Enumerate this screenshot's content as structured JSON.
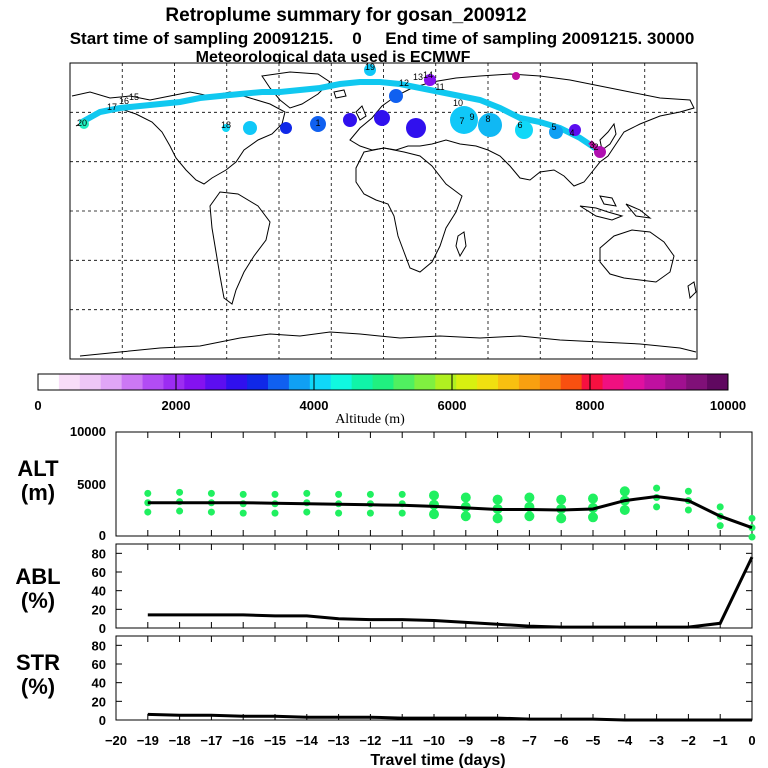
{
  "header": {
    "title": "Retroplume summary for gosan_200912",
    "line2": "Start time of sampling 20091215.    0     End time of sampling 20091215. 30000",
    "line3": "Meteorological data used is ECMWF"
  },
  "colorbar": {
    "label": "Altitude (m)",
    "ticks": [
      "0",
      "2000",
      "4000",
      "6000",
      "8000",
      "10000"
    ],
    "colors": [
      "#ffffff",
      "#f8ddf8",
      "#eec6f6",
      "#e0a6f6",
      "#cc78f4",
      "#b24cf4",
      "#9c2cf2",
      "#8412f0",
      "#5c0ef0",
      "#3010ee",
      "#1028e8",
      "#1060f0",
      "#10a0f4",
      "#10d8f8",
      "#10f8e0",
      "#10f4a8",
      "#20f080",
      "#50f060",
      "#80f040",
      "#b0f020",
      "#d8f010",
      "#f0e010",
      "#f8c010",
      "#f8a010",
      "#f88010",
      "#f85010",
      "#f81040",
      "#f01080",
      "#e010a0",
      "#c010a0",
      "#a01090",
      "#801078",
      "#600860"
    ]
  },
  "map_labels": [
    "19",
    "14",
    "13",
    "12",
    "11",
    "10",
    "9",
    "8",
    "7",
    "6",
    "5",
    "4",
    "3",
    "2",
    "1",
    "20",
    "18",
    "17",
    "16",
    "15"
  ],
  "charts": {
    "xlabel": "Travel time (days)",
    "xticks": [
      "-20",
      "-19",
      "-18",
      "-17",
      "-16",
      "-15",
      "-14",
      "-13",
      "-12",
      "-11",
      "-10",
      "-9",
      "-8",
      "-7",
      "-6",
      "-5",
      "-4",
      "-3",
      "-2",
      "-1",
      "0"
    ],
    "alt": {
      "label1": "ALT",
      "label2": "(m)",
      "ticks": [
        "10000",
        "5000",
        "0"
      ]
    },
    "abl": {
      "label1": "ABL",
      "label2": "(%)",
      "ticks": [
        "80",
        "60",
        "40",
        "20",
        "0"
      ]
    },
    "str": {
      "label1": "STR",
      "label2": "(%)",
      "ticks": [
        "80",
        "60",
        "40",
        "20",
        "0"
      ]
    }
  },
  "chart_data": [
    {
      "type": "line",
      "title": "ALT",
      "xlabel": "Travel time (days)",
      "ylabel": "ALT (m)",
      "xlim": [
        -20,
        0
      ],
      "ylim": [
        0,
        10000
      ],
      "x": [
        -19,
        -18,
        -17,
        -16,
        -15,
        -14,
        -13,
        -12,
        -11,
        -10,
        -9,
        -8,
        -7,
        -6,
        -5,
        -4,
        -3,
        -2,
        -1,
        0
      ],
      "series": [
        {
          "name": "mean altitude",
          "values": [
            3200,
            3200,
            3200,
            3200,
            3150,
            3100,
            3050,
            3000,
            2950,
            2850,
            2700,
            2550,
            2550,
            2500,
            2600,
            3400,
            3800,
            3400,
            1900,
            800
          ]
        },
        {
          "name": "cluster altitudes",
          "values": [
            3200,
            3300,
            3200,
            3100,
            3100,
            3200,
            3100,
            3100,
            3100,
            3000,
            2800,
            2600,
            2800,
            2600,
            2700,
            3400,
            3700,
            3400,
            1900,
            800
          ]
        }
      ]
    },
    {
      "type": "line",
      "title": "ABL",
      "xlabel": "Travel time (days)",
      "ylabel": "ABL (%)",
      "xlim": [
        -20,
        0
      ],
      "ylim": [
        0,
        90
      ],
      "x": [
        -19,
        -18,
        -17,
        -16,
        -15,
        -14,
        -13,
        -12,
        -11,
        -10,
        -9,
        -8,
        -7,
        -6,
        -5,
        -4,
        -3,
        -2,
        -1,
        0
      ],
      "series": [
        {
          "name": "ABL",
          "values": [
            14,
            14,
            14,
            14,
            13,
            13,
            10,
            9,
            9,
            8,
            6,
            4,
            2,
            1,
            1,
            1,
            1,
            1,
            5,
            76
          ]
        }
      ]
    },
    {
      "type": "line",
      "title": "STR",
      "xlabel": "Travel time (days)",
      "ylabel": "STR (%)",
      "xlim": [
        -20,
        0
      ],
      "ylim": [
        0,
        90
      ],
      "x": [
        -19,
        -18,
        -17,
        -16,
        -15,
        -14,
        -13,
        -12,
        -11,
        -10,
        -9,
        -8,
        -7,
        -6,
        -5,
        -4,
        -3,
        -2,
        -1,
        0
      ],
      "series": [
        {
          "name": "STR",
          "values": [
            6,
            5,
            5,
            4,
            4,
            3,
            3,
            3,
            2,
            2,
            2,
            2,
            1,
            1,
            1,
            0,
            0,
            0,
            0,
            0
          ]
        }
      ]
    }
  ]
}
